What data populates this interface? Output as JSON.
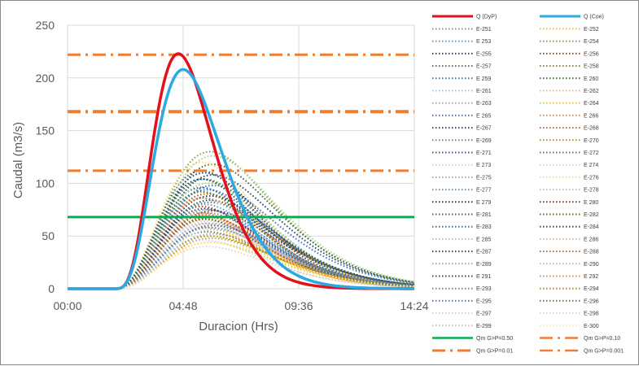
{
  "chart_data": {
    "type": "line",
    "xlabel": "Duracion (Hrs)",
    "ylabel": "Caudal (m3/s)",
    "xlim": [
      0,
      14.4
    ],
    "ylim": [
      0,
      250
    ],
    "x_ticks": [
      "00:00",
      "04:48",
      "09:36",
      "14:24"
    ],
    "y_ticks": [
      "0",
      "50",
      "100",
      "150",
      "200",
      "250"
    ],
    "grid": "vertical and horizontal major gridlines",
    "legend_position": "right",
    "hydrograph_start_hr": 1.9,
    "series_main": [
      {
        "name": "Q (DyP)",
        "color": "#e4101a",
        "peak_x": 4.6,
        "peak_y": 223
      },
      {
        "name": "Q (Coe)",
        "color": "#2aaae2",
        "peak_x": 4.8,
        "peak_y": 208
      }
    ],
    "ensemble_names": [
      "E-251",
      "E-252",
      "E 253",
      "E-254",
      "E-255",
      "E-256",
      "E-257",
      "E-258",
      "E 259",
      "E 260",
      "E-261",
      "E-262",
      "E-263",
      "E-264",
      "E 265",
      "E 266",
      "E-267",
      "E-268",
      "E-269",
      "E-270",
      "E-271",
      "E-272",
      "E 273",
      "E 274",
      "E-275",
      "E-276",
      "E-277",
      "E-278",
      "E 279",
      "E 280",
      "E-281",
      "E-282",
      "E-283",
      "E-284",
      "E 285",
      "E 286",
      "E-287",
      "E-288",
      "E-289",
      "E-290",
      "E 291",
      "E 292",
      "E-293",
      "E-294",
      "E-295",
      "E-296",
      "E-297",
      "E-298",
      "E-299",
      "E-300"
    ],
    "ensemble_colors": [
      "#8c8c8c",
      "#ffc000",
      "#5b9bd5",
      "#70ad47",
      "#264478",
      "#9e480e",
      "#636363",
      "#997300",
      "#2e75b6",
      "#43682b",
      "#9dc3e6",
      "#f4b183",
      "#a5a5a5",
      "#ffc000",
      "#4472c4",
      "#ed7d31",
      "#1f4e79",
      "#c55a11",
      "#7f7f7f",
      "#bf9000",
      "#2f5597",
      "#548235",
      "#bdd7ee",
      "#f8cbad",
      "#a9a9a9",
      "#ffd966",
      "#5b9bd5",
      "#a9d18e",
      "#203864",
      "#843c0c",
      "#595959",
      "#7f6000",
      "#2e75b6",
      "#375623",
      "#9dc3e6",
      "#f4b183",
      "#264478",
      "#c55a11",
      "#8faadc",
      "#a9d18e",
      "#1f4e79",
      "#ed7d31",
      "#7f7f7f",
      "#bf9000",
      "#4472c4",
      "#548235",
      "#bdd7ee",
      "#f8cbad",
      "#c0c0c0",
      "#ffe699"
    ],
    "ensemble_peaks_y": [
      92,
      58,
      75,
      130,
      108,
      78,
      70,
      54,
      82,
      118,
      86,
      62,
      66,
      44,
      98,
      72,
      110,
      90,
      58,
      48,
      96,
      104,
      64,
      60,
      52,
      120,
      80,
      100,
      88,
      74,
      112,
      66,
      94,
      84,
      56,
      70,
      76,
      68,
      62,
      126,
      104,
      86,
      72,
      50,
      60,
      92,
      46,
      40,
      48,
      44
    ],
    "ensemble_peak_x": 5.8,
    "thresholds": [
      {
        "name": "Qm G>P=0.50",
        "value": 68,
        "color": "#00b050",
        "style": "solid"
      },
      {
        "name": "Qm G>P=0.10",
        "value": 112,
        "color": "#ed7d31",
        "style": "dashdot"
      },
      {
        "name": "Qm G>P=0.01",
        "value": 168,
        "color": "#ed7d31",
        "style": "dashdot-heavy"
      },
      {
        "name": "Qm G>P=0.001",
        "value": 222,
        "color": "#ed7d31",
        "style": "dashdot"
      }
    ]
  }
}
